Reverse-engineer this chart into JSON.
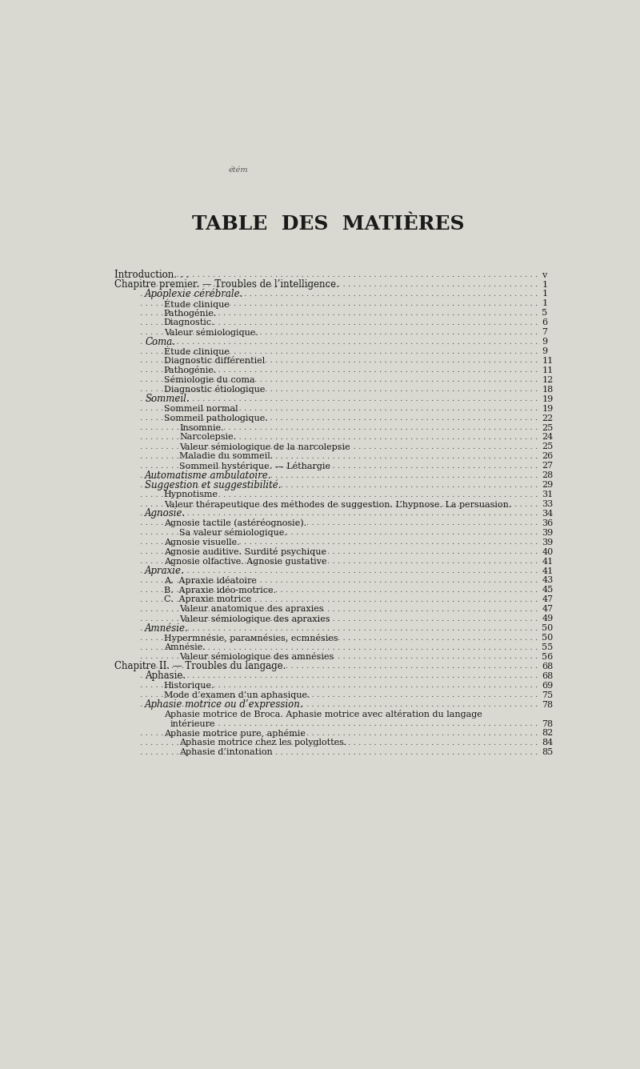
{
  "bg_color": "#d9d9d1",
  "text_color": "#1a1a1a",
  "title": "TABLE  DES  MATIÈRES",
  "title_fontsize": 18,
  "watermark": "étém",
  "entries": [
    {
      "text": "Introduction. . .",
      "page": "v",
      "indent": 0,
      "style": "smallcaps"
    },
    {
      "text": "Chapitre premier. — Troubles de l’intelligence.",
      "page": "1",
      "indent": 0,
      "style": "smallcaps_italic"
    },
    {
      "text": "Apoplexie cérébrale.",
      "page": "1",
      "indent": 1,
      "style": "italic"
    },
    {
      "text": "Étude clinique",
      "page": "1",
      "indent": 2,
      "style": "normal"
    },
    {
      "text": "Pathogénie.",
      "page": "5",
      "indent": 2,
      "style": "normal"
    },
    {
      "text": "Diagnostic.",
      "page": "6",
      "indent": 2,
      "style": "normal"
    },
    {
      "text": "Valeur sémiologique.",
      "page": "7",
      "indent": 2,
      "style": "normal"
    },
    {
      "text": "Coma.",
      "page": "9",
      "indent": 1,
      "style": "italic"
    },
    {
      "text": "Étude clinique",
      "page": "9",
      "indent": 2,
      "style": "normal"
    },
    {
      "text": "Diagnostic différentiel",
      "page": "11",
      "indent": 2,
      "style": "normal"
    },
    {
      "text": "Pathogénie.",
      "page": "11",
      "indent": 2,
      "style": "normal"
    },
    {
      "text": "Sémiologie du coma",
      "page": "12",
      "indent": 2,
      "style": "normal"
    },
    {
      "text": "Diagnostic étiologique",
      "page": "18",
      "indent": 2,
      "style": "normal"
    },
    {
      "text": "Sommeil.",
      "page": "19",
      "indent": 1,
      "style": "italic"
    },
    {
      "text": "Sommeil normal",
      "page": "19",
      "indent": 2,
      "style": "normal"
    },
    {
      "text": "Sommeil pathologique.",
      "page": "22",
      "indent": 2,
      "style": "normal"
    },
    {
      "text": "Insomnie.",
      "page": "25",
      "indent": 3,
      "style": "normal"
    },
    {
      "text": "Narcolepsie.",
      "page": "24",
      "indent": 3,
      "style": "normal"
    },
    {
      "text": "Valeur sémiologique de la narcolepsie",
      "page": "25",
      "indent": 3,
      "style": "normal"
    },
    {
      "text": "Maladie du sommeil.",
      "page": "26",
      "indent": 3,
      "style": "normal"
    },
    {
      "text": "Sommeil hystérique. — Léthargie",
      "page": "27",
      "indent": 3,
      "style": "normal"
    },
    {
      "text": "Automatisme ambulatoire.",
      "page": "28",
      "indent": 1,
      "style": "italic"
    },
    {
      "text": "Suggestion et suggestibilité.",
      "page": "29",
      "indent": 1,
      "style": "italic"
    },
    {
      "text": "Hypnotisme",
      "page": "31",
      "indent": 2,
      "style": "normal"
    },
    {
      "text": "Valeur thérapeutique des méthodes de suggestion. L’hypnose. La persuasion.",
      "page": "33",
      "indent": 2,
      "style": "normal"
    },
    {
      "text": "Agnosie.",
      "page": "34",
      "indent": 1,
      "style": "italic"
    },
    {
      "text": "Agnosie tactile (astéréognosie).",
      "page": "36",
      "indent": 2,
      "style": "normal"
    },
    {
      "text": "Sa valeur sémiologique.",
      "page": "39",
      "indent": 3,
      "style": "normal"
    },
    {
      "text": "Agnosie visuelle.",
      "page": "39",
      "indent": 2,
      "style": "normal"
    },
    {
      "text": "Agnosie auditive. Surdité psychique",
      "page": "40",
      "indent": 2,
      "style": "normal"
    },
    {
      "text": "Agnosie olfactive. Agnosie gustative",
      "page": "41",
      "indent": 2,
      "style": "normal"
    },
    {
      "text": "Apraxie.",
      "page": "41",
      "indent": 1,
      "style": "italic"
    },
    {
      "text": "A.  Apraxie idéatoire",
      "page": "43",
      "indent": 2,
      "style": "normal"
    },
    {
      "text": "B.  Apraxie idéo-motrice.",
      "page": "45",
      "indent": 2,
      "style": "normal"
    },
    {
      "text": "C.  Apraxie motrice",
      "page": "47",
      "indent": 2,
      "style": "normal"
    },
    {
      "text": "Valeur anatomique des apraxies",
      "page": "47",
      "indent": 3,
      "style": "normal"
    },
    {
      "text": "Valeur sémiologique des apraxies",
      "page": "49",
      "indent": 3,
      "style": "normal"
    },
    {
      "text": "Amnésie.",
      "page": "50",
      "indent": 1,
      "style": "italic"
    },
    {
      "text": "Hypermnésie, parамnésies, ecmnésies",
      "page": "50",
      "indent": 2,
      "style": "normal"
    },
    {
      "text": "Amnésie.",
      "page": "55",
      "indent": 2,
      "style": "normal"
    },
    {
      "text": "Valeur sémiologique des amnésies",
      "page": "56",
      "indent": 3,
      "style": "normal"
    },
    {
      "text": "Chapitre II. — Troubles du langage.",
      "page": "68",
      "indent": 0,
      "style": "smallcaps_italic"
    },
    {
      "text": "Aphasie.",
      "page": "68",
      "indent": 1,
      "style": "smallcaps"
    },
    {
      "text": "Historique.",
      "page": "69",
      "indent": 2,
      "style": "normal"
    },
    {
      "text": "Mode d’examen d’un aphasique.",
      "page": "75",
      "indent": 2,
      "style": "normal"
    },
    {
      "text": "Aphasie motrice ou d’expression.",
      "page": "78",
      "indent": 1,
      "style": "italic"
    },
    {
      "text": "Aphasie motrice de Broca. Aphasie motrice avec altération du langage intérieure",
      "page": "78",
      "indent": 2,
      "style": "normal_wrap"
    },
    {
      "text": "Aphasie motrice pure, aphémie",
      "page": "82",
      "indent": 2,
      "style": "normal"
    },
    {
      "text": "Aphasie motrice chez les polyglottes.",
      "page": "84",
      "indent": 3,
      "style": "normal"
    },
    {
      "text": "Aphasie d’intonation",
      "page": "85",
      "indent": 3,
      "style": "normal"
    }
  ]
}
